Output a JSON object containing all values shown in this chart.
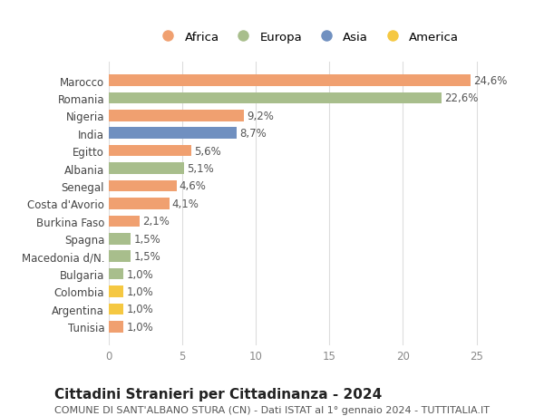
{
  "categories": [
    "Tunisia",
    "Argentina",
    "Colombia",
    "Bulgaria",
    "Macedonia d/N.",
    "Spagna",
    "Burkina Faso",
    "Costa d'Avorio",
    "Senegal",
    "Albania",
    "Egitto",
    "India",
    "Nigeria",
    "Romania",
    "Marocco"
  ],
  "values": [
    1.0,
    1.0,
    1.0,
    1.0,
    1.5,
    1.5,
    2.1,
    4.1,
    4.6,
    5.1,
    5.6,
    8.7,
    9.2,
    22.6,
    24.6
  ],
  "labels": [
    "1,0%",
    "1,0%",
    "1,0%",
    "1,0%",
    "1,5%",
    "1,5%",
    "2,1%",
    "4,1%",
    "4,6%",
    "5,1%",
    "5,6%",
    "8,7%",
    "9,2%",
    "22,6%",
    "24,6%"
  ],
  "colors": [
    "#f0a070",
    "#f5c842",
    "#f5c842",
    "#a8be8c",
    "#a8be8c",
    "#a8be8c",
    "#f0a070",
    "#f0a070",
    "#f0a070",
    "#a8be8c",
    "#f0a070",
    "#7090c0",
    "#f0a070",
    "#a8be8c",
    "#f0a070"
  ],
  "continent_colors": {
    "Africa": "#f0a070",
    "Europa": "#a8be8c",
    "Asia": "#7090c0",
    "America": "#f5c842"
  },
  "legend_labels": [
    "Africa",
    "Europa",
    "Asia",
    "America"
  ],
  "title": "Cittadini Stranieri per Cittadinanza - 2024",
  "subtitle": "COMUNE DI SANT'ALBANO STURA (CN) - Dati ISTAT al 1° gennaio 2024 - TUTTITALIA.IT",
  "xlim": [
    0,
    27
  ],
  "xticks": [
    0,
    5,
    10,
    15,
    20,
    25
  ],
  "background_color": "#ffffff",
  "bar_height": 0.65,
  "label_fontsize": 8.5,
  "tick_fontsize": 8.5,
  "title_fontsize": 11,
  "subtitle_fontsize": 8
}
